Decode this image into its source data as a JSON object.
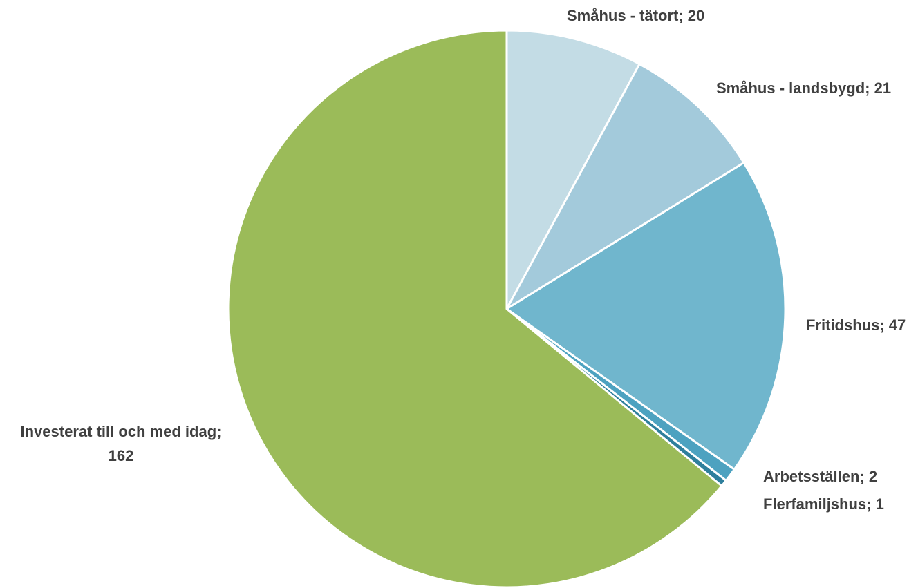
{
  "chart_data": {
    "type": "pie",
    "title": "",
    "slices": [
      {
        "label": "Småhus - tätort",
        "value": 20,
        "display": "Småhus - tätort; 20",
        "color": "#c3dce5"
      },
      {
        "label": "Småhus - landsbygd",
        "value": 21,
        "display": "Småhus - landsbygd; 21",
        "color": "#a3cadb"
      },
      {
        "label": "Fritidshus",
        "value": 47,
        "display": "Fritidshus; 47",
        "color": "#70b6cd"
      },
      {
        "label": "Arbetsställen",
        "value": 2,
        "display": "Arbetsställen; 2",
        "color": "#4da2c0"
      },
      {
        "label": "Flerfamiljshus",
        "value": 1,
        "display": "Flerfamiljshus; 1",
        "color": "#2f7f9c"
      },
      {
        "label": "Investerat till och med idag",
        "value": 162,
        "display": "Investerat till och med idag; 162",
        "display_lines": [
          "Investerat till och med idag;",
          "162"
        ],
        "color": "#9bbb59"
      }
    ],
    "legend": "none",
    "data_labels": "outside"
  }
}
